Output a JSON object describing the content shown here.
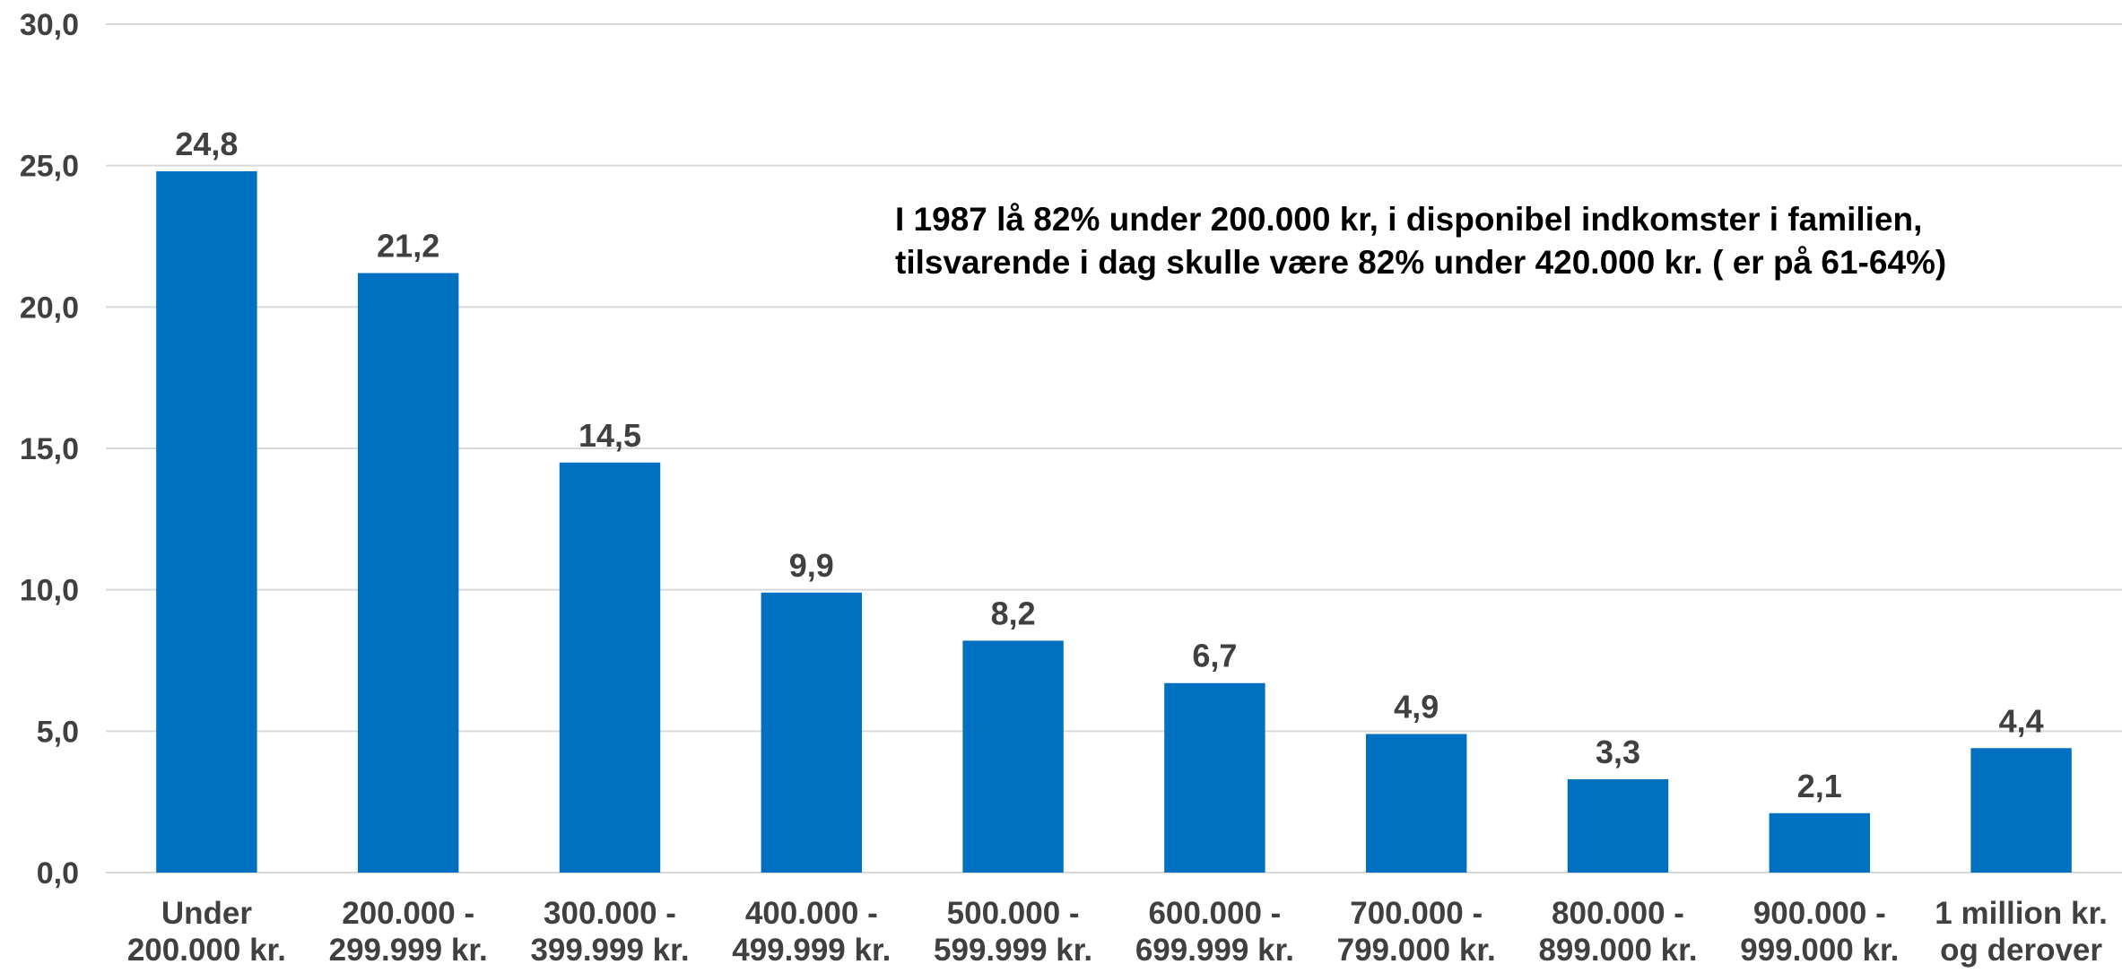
{
  "chart_data": {
    "type": "bar",
    "categories": [
      [
        "Under",
        "200.000 kr."
      ],
      [
        "200.000 -",
        "299.999 kr."
      ],
      [
        "300.000 -",
        "399.999 kr."
      ],
      [
        "400.000 -",
        "499.999 kr."
      ],
      [
        "500.000 -",
        "599.999 kr."
      ],
      [
        "600.000 -",
        "699.999 kr."
      ],
      [
        "700.000 -",
        "799.000 kr."
      ],
      [
        "800.000 -",
        "899.000 kr."
      ],
      [
        "900.000 -",
        "999.000 kr."
      ],
      [
        "1 million kr.",
        "og derover"
      ]
    ],
    "values": [
      24.8,
      21.2,
      14.5,
      9.9,
      8.2,
      6.7,
      4.9,
      3.3,
      2.1,
      4.4
    ],
    "value_labels": [
      "24,8",
      "21,2",
      "14,5",
      "9,9",
      "8,2",
      "6,7",
      "4,9",
      "3,3",
      "2,1",
      "4,4"
    ],
    "ylim": [
      0,
      30
    ],
    "yticks": [
      0,
      5,
      10,
      15,
      20,
      25,
      30
    ],
    "ytick_labels": [
      "0,0",
      "5,0",
      "10,0",
      "15,0",
      "20,0",
      "25,0",
      "30,0"
    ],
    "grid": true,
    "bar_color": "#0070C0",
    "grid_color": "#D9D9D9",
    "annotation": [
      "I 1987 lå 82% under 200.000 kr, i disponibel indkomster i familien,",
      "tilsvarende i dag skulle være 82% under 420.000 kr. ( er på 61-64%)"
    ]
  }
}
